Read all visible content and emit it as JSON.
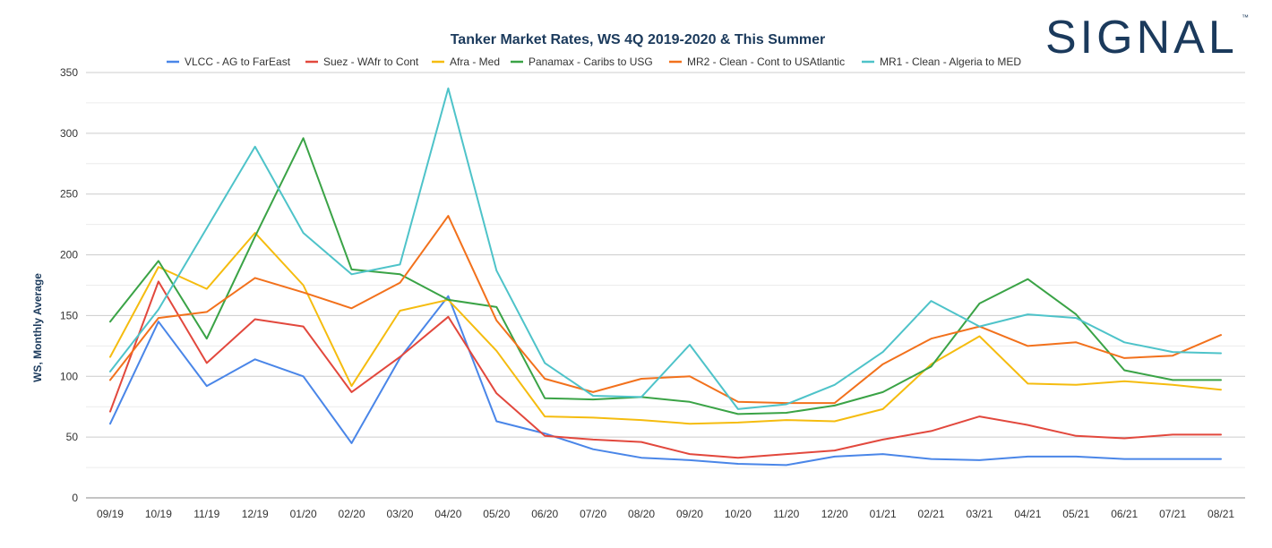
{
  "logo": {
    "text": "SIGNAL",
    "tm": "™"
  },
  "chart_data": {
    "type": "line",
    "title": "Tanker Market Rates, WS 4Q 2019-2020 & This Summer",
    "xlabel": "",
    "ylabel": "WS, Monthly Average",
    "ylim": [
      0,
      350
    ],
    "yticks": [
      0,
      50,
      100,
      150,
      200,
      250,
      300,
      350
    ],
    "grid": true,
    "legend_position": "top",
    "categories": [
      "09/19",
      "10/19",
      "11/19",
      "12/19",
      "01/20",
      "02/20",
      "03/20",
      "04/20",
      "05/20",
      "06/20",
      "07/20",
      "08/20",
      "09/20",
      "10/20",
      "11/20",
      "12/20",
      "01/21",
      "02/21",
      "03/21",
      "04/21",
      "05/21",
      "06/21",
      "07/21",
      "08/21"
    ],
    "series": [
      {
        "name": "VLCC - AG to FarEast",
        "color": "#4a86e8",
        "values": [
          61,
          145,
          92,
          114,
          100,
          45,
          115,
          166,
          63,
          53,
          40,
          33,
          31,
          28,
          27,
          34,
          36,
          32,
          31,
          34,
          34,
          32,
          32,
          32
        ]
      },
      {
        "name": "Suez - WAfr to Cont",
        "color": "#e2483d",
        "values": [
          71,
          178,
          111,
          147,
          141,
          87,
          116,
          149,
          86,
          51,
          48,
          46,
          36,
          33,
          36,
          39,
          48,
          55,
          67,
          60,
          51,
          49,
          52,
          52
        ]
      },
      {
        "name": "Afra - Med",
        "color": "#f5bc0f",
        "values": [
          116,
          190,
          172,
          218,
          175,
          92,
          154,
          163,
          121,
          67,
          66,
          64,
          61,
          62,
          64,
          63,
          73,
          110,
          133,
          94,
          93,
          96,
          93,
          89
        ]
      },
      {
        "name": "Panamax - Caribs to USG",
        "color": "#3aa346",
        "values": [
          145,
          195,
          131,
          215,
          296,
          188,
          184,
          163,
          157,
          82,
          81,
          83,
          79,
          69,
          70,
          76,
          87,
          108,
          160,
          180,
          151,
          105,
          97,
          97
        ]
      },
      {
        "name": "MR2 - Clean - Cont to USAtlantic",
        "color": "#f2711c",
        "values": [
          97,
          148,
          153,
          181,
          169,
          156,
          177,
          232,
          146,
          98,
          87,
          98,
          100,
          79,
          78,
          78,
          110,
          131,
          141,
          125,
          128,
          115,
          117,
          134
        ]
      },
      {
        "name": "MR1 - Clean - Algeria to MED",
        "color": "#4ec3c9",
        "values": [
          104,
          155,
          222,
          289,
          218,
          184,
          192,
          337,
          187,
          111,
          84,
          83,
          126,
          73,
          77,
          93,
          120,
          162,
          141,
          151,
          148,
          128,
          120,
          119
        ]
      }
    ]
  }
}
